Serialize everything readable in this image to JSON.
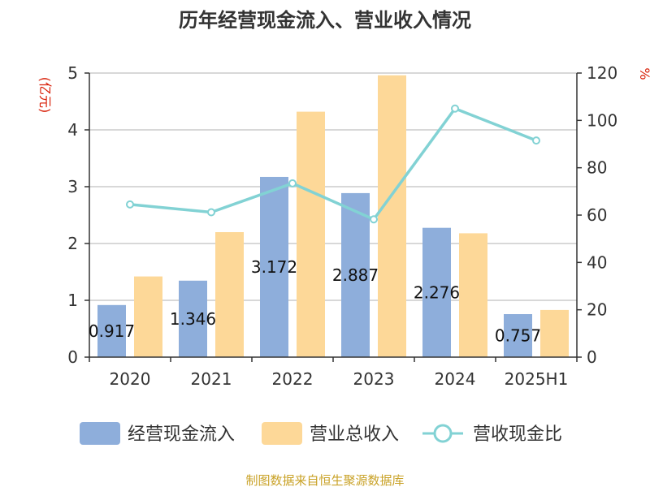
{
  "chart_data": {
    "type": "bar",
    "title": "历年经营现金流入、营业收入情况",
    "categories": [
      "2020",
      "2021",
      "2022",
      "2023",
      "2024",
      "2025H1"
    ],
    "series": [
      {
        "name": "经营现金流入",
        "type": "bar",
        "axis": "left",
        "color": "#8eaedb",
        "values": [
          0.917,
          1.346,
          3.172,
          2.887,
          2.276,
          0.757
        ],
        "labels": [
          "0.917",
          "1.346",
          "3.172",
          "2.887",
          "2.276",
          "0.757"
        ]
      },
      {
        "name": "营业总收入",
        "type": "bar",
        "axis": "left",
        "color": "#fdd898",
        "values": [
          1.42,
          2.2,
          4.32,
          4.96,
          2.18,
          0.83
        ]
      },
      {
        "name": "营收现金比",
        "type": "line",
        "axis": "right",
        "color": "#82d2d4",
        "values": [
          64.5,
          61.2,
          73.4,
          58.2,
          105.0,
          91.5
        ]
      }
    ],
    "left_axis": {
      "unit_label": "(亿元)",
      "range": [
        0,
        5
      ],
      "ticks": [
        "0",
        "1",
        "2",
        "3",
        "4",
        "5"
      ]
    },
    "right_axis": {
      "unit_label": "%",
      "range": [
        0,
        120
      ],
      "ticks": [
        "0",
        "20",
        "40",
        "60",
        "80",
        "100",
        "120"
      ]
    },
    "grid": true,
    "legend_position": "bottom"
  },
  "footer": {
    "source": "制图数据来自恒生聚源数据库"
  }
}
